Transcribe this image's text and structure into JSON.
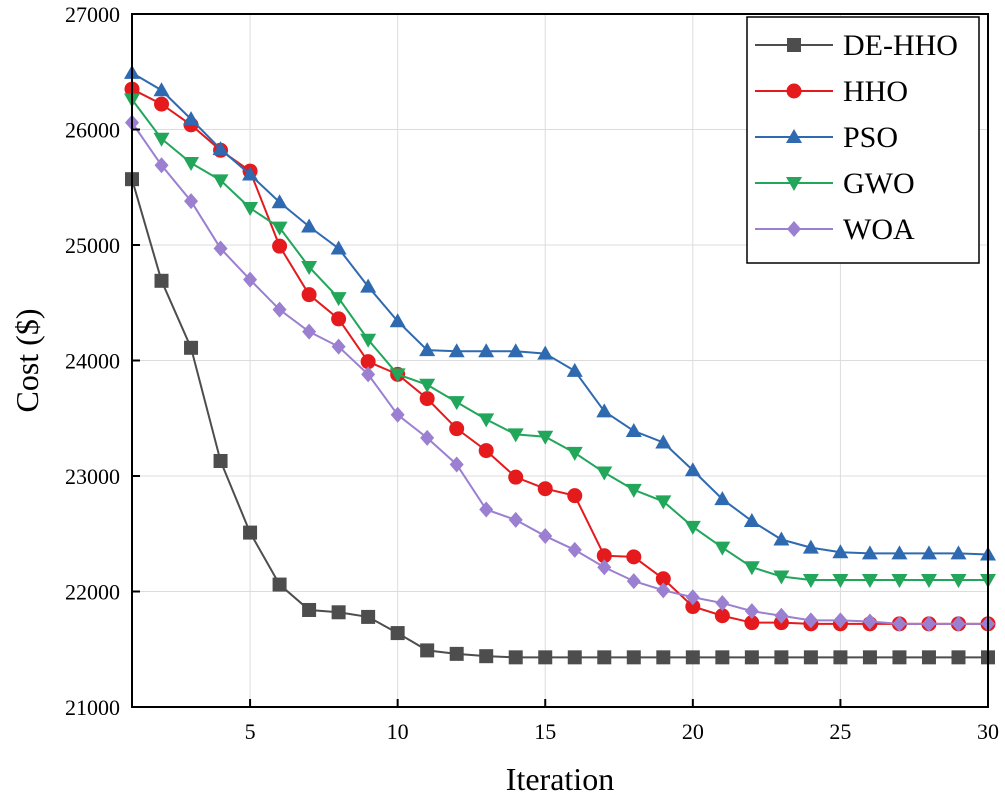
{
  "chart_data": {
    "type": "line",
    "xlabel": "Iteration",
    "ylabel": "Cost ($)",
    "xlim": [
      1,
      30
    ],
    "ylim": [
      21000,
      27000
    ],
    "xticks": [
      5,
      10,
      15,
      20,
      25,
      30
    ],
    "yticks": [
      21000,
      22000,
      23000,
      24000,
      25000,
      26000,
      27000
    ],
    "grid": true,
    "legend_position": "top-right",
    "x": [
      1,
      2,
      3,
      4,
      5,
      6,
      7,
      8,
      9,
      10,
      11,
      12,
      13,
      14,
      15,
      16,
      17,
      18,
      19,
      20,
      21,
      22,
      23,
      24,
      25,
      26,
      27,
      28,
      29,
      30
    ],
    "series": [
      {
        "name": "DE-HHO",
        "color": "#4d4d4d",
        "marker": "square",
        "values": [
          25570,
          24690,
          24110,
          23130,
          22510,
          22060,
          21840,
          21820,
          21780,
          21640,
          21490,
          21460,
          21440,
          21430,
          21430,
          21430,
          21430,
          21430,
          21430,
          21430,
          21430,
          21430,
          21430,
          21430,
          21430,
          21430,
          21430,
          21430,
          21430,
          21430
        ]
      },
      {
        "name": "HHO",
        "color": "#e41a1c",
        "marker": "circle",
        "values": [
          26350,
          26220,
          26040,
          25820,
          25640,
          24990,
          24570,
          24360,
          23990,
          23880,
          23670,
          23410,
          23220,
          22990,
          22890,
          22830,
          22310,
          22300,
          22110,
          21870,
          21790,
          21730,
          21730,
          21720,
          21720,
          21720,
          21720,
          21720,
          21720,
          21720
        ]
      },
      {
        "name": "PSO",
        "color": "#2f6ab1",
        "marker": "triangle-up",
        "values": [
          26490,
          26340,
          26090,
          25830,
          25610,
          25370,
          25160,
          24970,
          24640,
          24340,
          24090,
          24080,
          24080,
          24080,
          24060,
          23910,
          23560,
          23390,
          23290,
          23050,
          22800,
          22610,
          22450,
          22380,
          22340,
          22330,
          22330,
          22330,
          22330,
          22320
        ]
      },
      {
        "name": "GWO",
        "color": "#21a65a",
        "marker": "triangle-down",
        "values": [
          26260,
          25920,
          25710,
          25560,
          25320,
          25150,
          24810,
          24540,
          24180,
          23880,
          23790,
          23640,
          23490,
          23360,
          23340,
          23200,
          23030,
          22880,
          22780,
          22560,
          22380,
          22210,
          22130,
          22100,
          22100,
          22100,
          22100,
          22100,
          22100,
          22100
        ]
      },
      {
        "name": "WOA",
        "color": "#9b7fd1",
        "marker": "diamond",
        "values": [
          26060,
          25690,
          25380,
          24970,
          24700,
          24440,
          24250,
          24120,
          23880,
          23530,
          23330,
          23100,
          22710,
          22620,
          22480,
          22360,
          22210,
          22090,
          22010,
          21950,
          21900,
          21830,
          21790,
          21750,
          21750,
          21740,
          21720,
          21720,
          21720,
          21720
        ]
      }
    ]
  }
}
